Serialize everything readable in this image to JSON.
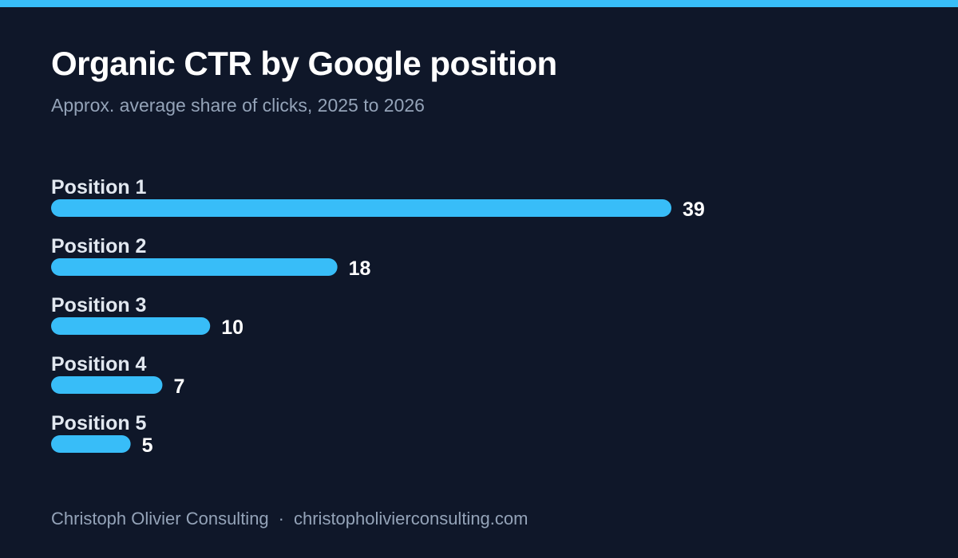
{
  "header": {
    "title": "Organic CTR by Google position",
    "subtitle": "Approx. average share of clicks, 2025 to 2026"
  },
  "colors": {
    "background": "#0f1729",
    "accent": "#38bdf8",
    "bar": "#38bdf8",
    "muted_text": "#94a3b8"
  },
  "chart_data": {
    "type": "bar",
    "orientation": "horizontal",
    "title": "Organic CTR by Google position",
    "subtitle": "Approx. average share of clicks, 2025 to 2026",
    "categories": [
      "Position 1",
      "Position 2",
      "Position 3",
      "Position 4",
      "Position 5"
    ],
    "values": [
      39,
      18,
      10,
      7,
      5
    ],
    "value_labels": [
      "39",
      "18",
      "10",
      "7",
      "5"
    ],
    "xlabel": "",
    "ylabel": "",
    "xlim": [
      0,
      39
    ],
    "grid": false,
    "legend": "none"
  },
  "footer": {
    "brand": "Christoph Olivier Consulting",
    "separator": "·",
    "url": "christopholivierconsulting.com"
  }
}
